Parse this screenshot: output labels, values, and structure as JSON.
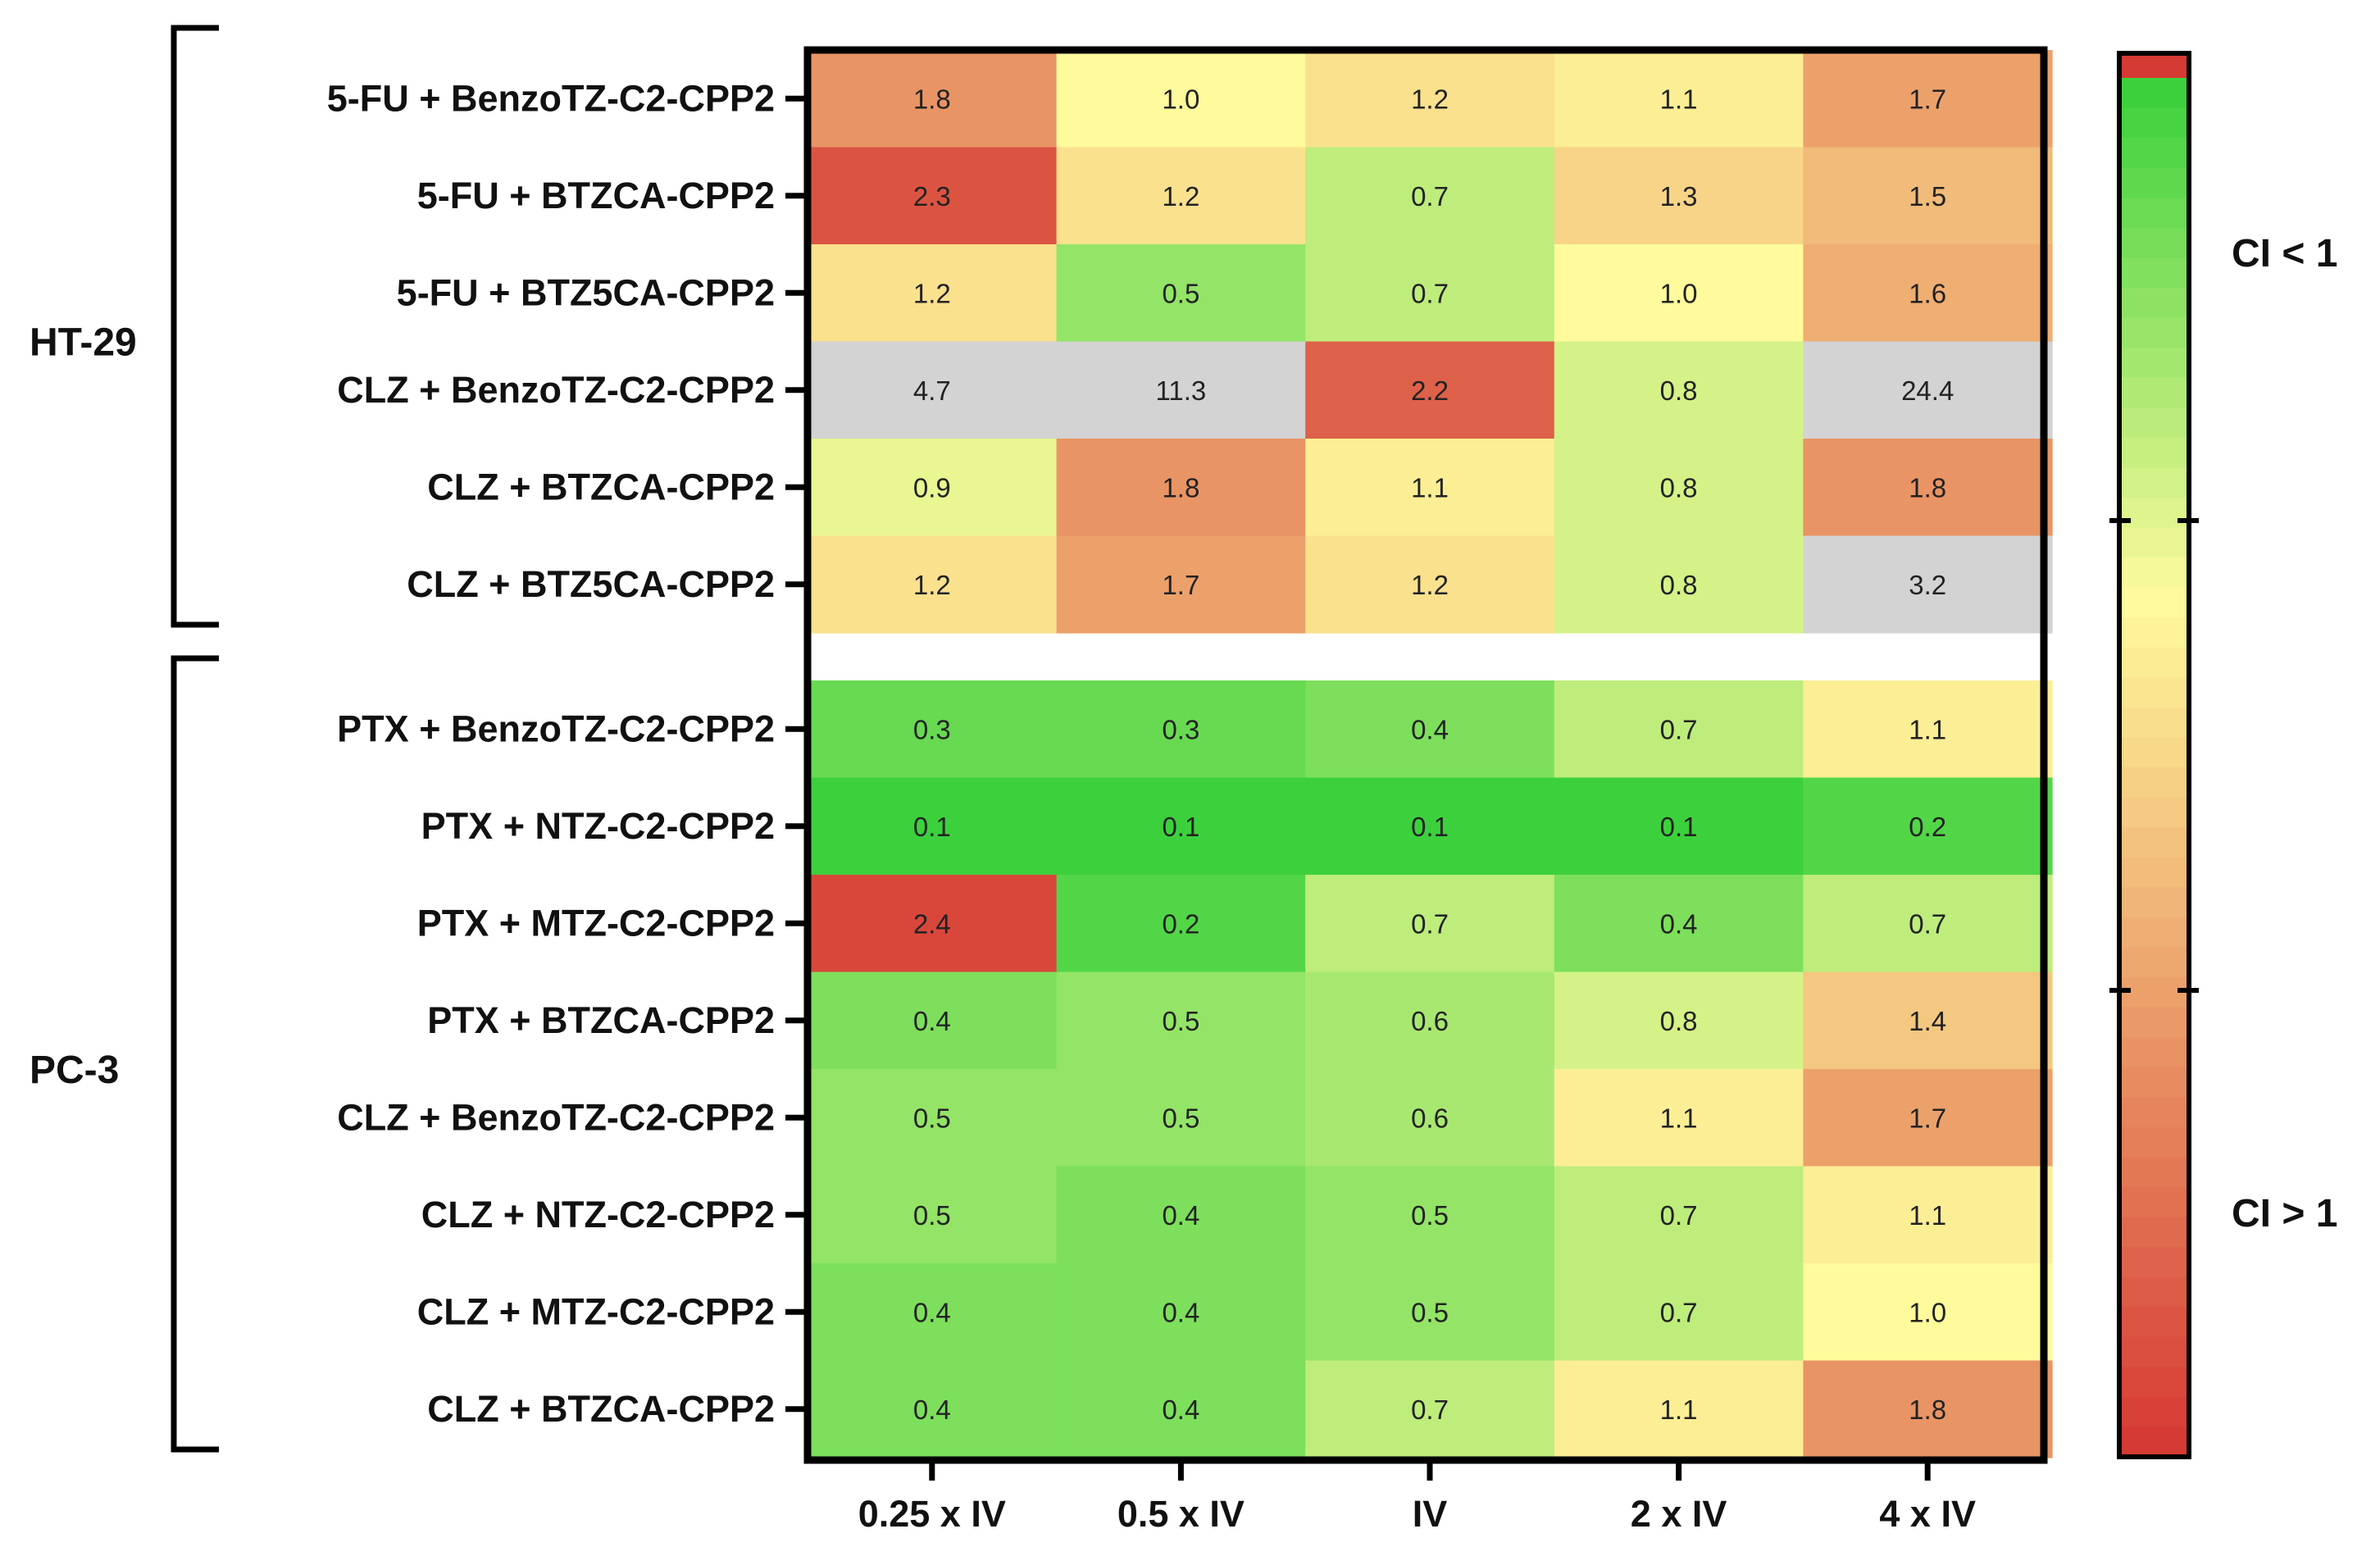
{
  "chart_data": {
    "type": "heatmap",
    "columns": [
      "0.25 x IV",
      "0.5 x IV",
      "IV",
      "2 x IV",
      "4 x IV"
    ],
    "groups": [
      {
        "name": "HT-29",
        "rows": [
          {
            "label": "5-FU + BenzoTZ-C2-CPP2",
            "values": [
              "1.8",
              "1.0",
              "1.2",
              "1.1",
              "1.7"
            ]
          },
          {
            "label": "5-FU + BTZCA-CPP2",
            "values": [
              "2.3",
              "1.2",
              "0.7",
              "1.3",
              "1.5"
            ]
          },
          {
            "label": "5-FU + BTZ5CA-CPP2",
            "values": [
              "1.2",
              "0.5",
              "0.7",
              "1.0",
              "1.6"
            ]
          },
          {
            "label": "CLZ + BenzoTZ-C2-CPP2",
            "values": [
              "4.7",
              "11.3",
              "2.2",
              "0.8",
              "24.4"
            ]
          },
          {
            "label": "CLZ + BTZCA-CPP2",
            "values": [
              "0.9",
              "1.8",
              "1.1",
              "0.8",
              "1.8"
            ]
          },
          {
            "label": "CLZ + BTZ5CA-CPP2",
            "values": [
              "1.2",
              "1.7",
              "1.2",
              "0.8",
              "3.2"
            ]
          }
        ]
      },
      {
        "name": "PC-3",
        "rows": [
          {
            "label": "PTX + BenzoTZ-C2-CPP2",
            "values": [
              "0.3",
              "0.3",
              "0.4",
              "0.7",
              "1.1"
            ]
          },
          {
            "label": "PTX + NTZ-C2-CPP2",
            "values": [
              "0.1",
              "0.1",
              "0.1",
              "0.1",
              "0.2"
            ]
          },
          {
            "label": "PTX + MTZ-C2-CPP2",
            "values": [
              "2.4",
              "0.2",
              "0.7",
              "0.4",
              "0.7"
            ]
          },
          {
            "label": "PTX + BTZCA-CPP2",
            "values": [
              "0.4",
              "0.5",
              "0.6",
              "0.8",
              "1.4"
            ]
          },
          {
            "label": "CLZ + BenzoTZ-C2-CPP2",
            "values": [
              "0.5",
              "0.5",
              "0.6",
              "1.1",
              "1.7"
            ]
          },
          {
            "label": "CLZ + NTZ-C2-CPP2",
            "values": [
              "0.5",
              "0.4",
              "0.5",
              "0.7",
              "1.1"
            ]
          },
          {
            "label": "CLZ + MTZ-C2-CPP2",
            "values": [
              "0.4",
              "0.4",
              "0.5",
              "0.7",
              "1.0"
            ]
          },
          {
            "label": "CLZ + BTZCA-CPP2",
            "values": [
              "0.4",
              "0.4",
              "0.7",
              "1.1",
              "1.8"
            ]
          }
        ]
      }
    ],
    "color_scale": {
      "low_color": "#3cd13c",
      "mid_color": "#fffb9c",
      "high_color": "#d63a34",
      "out_of_range_color": "#d3d3d3",
      "domain": [
        0.1,
        1.0,
        2.5
      ],
      "labels": [
        "CI < 1",
        "CI > 1"
      ]
    }
  }
}
